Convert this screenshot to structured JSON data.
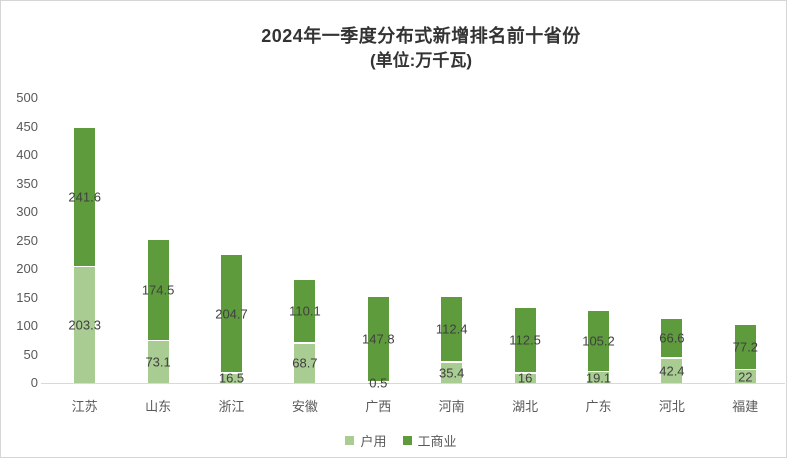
{
  "title": {
    "line1": "2024年一季度分布式新增排名前十省份",
    "line2": "(单位:万千瓦)"
  },
  "chart_data": {
    "type": "bar",
    "stacked": true,
    "title": "2024年一季度分布式新增排名前十省份 (单位:万千瓦)",
    "categories": [
      "江苏",
      "山东",
      "浙江",
      "安徽",
      "广西",
      "河南",
      "湖北",
      "广东",
      "河北",
      "福建"
    ],
    "series": [
      {
        "name": "户用",
        "color": "#a8cc92",
        "values": [
          203.3,
          73.1,
          16.5,
          68.7,
          0.5,
          35.4,
          16,
          19.1,
          42.4,
          22
        ]
      },
      {
        "name": "工商业",
        "color": "#5e9b3d",
        "values": [
          241.6,
          174.5,
          204.7,
          110.1,
          147.8,
          112.4,
          112.5,
          105.2,
          66.6,
          77.2
        ]
      }
    ],
    "xlabel": "",
    "ylabel": "",
    "ylim": [
      0,
      500
    ],
    "yticks": [
      0,
      50,
      100,
      150,
      200,
      250,
      300,
      350,
      400,
      450,
      500
    ],
    "grid": false,
    "data_labels": true,
    "legend_position": "bottom"
  },
  "colors": {
    "household": "#a8cc92",
    "industrial": "#5e9b3d",
    "data_label": "#404040",
    "axis_text": "#595959",
    "axis_line": "#d9d9d9",
    "frame_border": "#d5d5d5",
    "title_text": "#333333"
  }
}
